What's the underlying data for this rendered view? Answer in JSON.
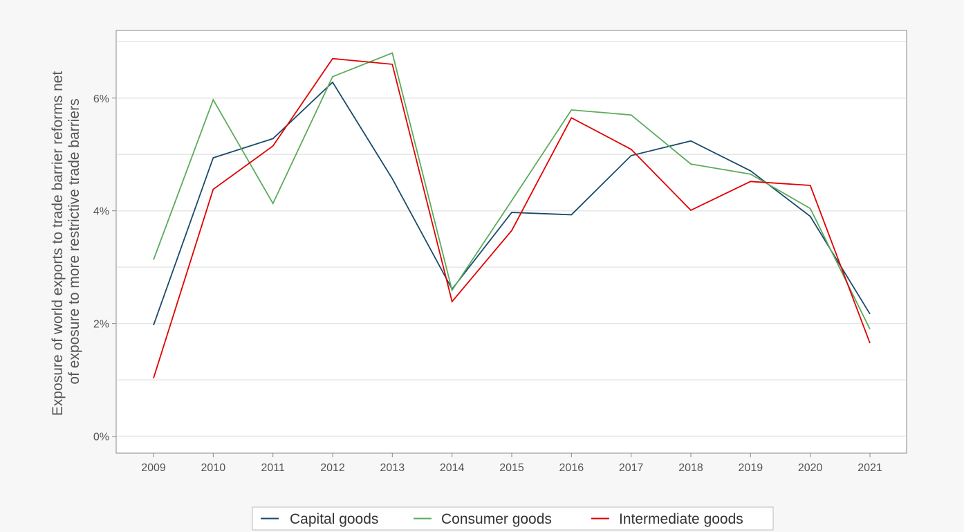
{
  "chart_data": {
    "type": "line",
    "title": "",
    "xlabel": "",
    "ylabel_lines": [
      "Exposure of world exports to trade barrier reforms net",
      "of exposure to more restrictive trade barriers"
    ],
    "categories": [
      "2009",
      "2010",
      "2011",
      "2012",
      "2013",
      "2014",
      "2015",
      "2016",
      "2017",
      "2018",
      "2019",
      "2020",
      "2021"
    ],
    "ylim": [
      -0.3,
      7.2
    ],
    "y_ticks": [
      0,
      2,
      4,
      6
    ],
    "y_tick_labels": [
      "0%",
      "2%",
      "4%",
      "6%"
    ],
    "y_minor_grid": [
      1,
      3,
      5,
      7
    ],
    "grid": true,
    "legend_position": "bottom",
    "series": [
      {
        "name": "Capital goods",
        "color": "#1a4a6b",
        "values": [
          1.97,
          4.94,
          5.28,
          6.28,
          4.57,
          2.61,
          3.97,
          3.93,
          4.98,
          5.24,
          4.71,
          3.9,
          2.17
        ]
      },
      {
        "name": "Consumer goods",
        "color": "#5aab5a",
        "values": [
          3.13,
          5.97,
          4.13,
          6.38,
          6.8,
          2.59,
          4.18,
          5.79,
          5.7,
          4.83,
          4.65,
          4.04,
          1.9
        ]
      },
      {
        "name": "Intermediate goods",
        "color": "#e00000",
        "values": [
          1.03,
          4.38,
          5.15,
          6.7,
          6.6,
          2.39,
          3.65,
          5.65,
          5.09,
          4.01,
          4.52,
          4.45,
          1.65
        ]
      }
    ]
  }
}
